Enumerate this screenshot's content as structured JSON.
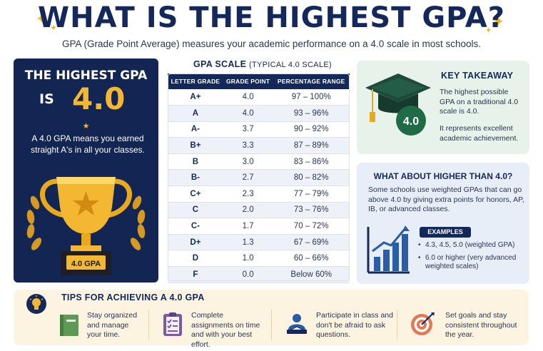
{
  "header": {
    "title": "WHAT IS THE HIGHEST GPA?",
    "subtitle": "GPA (Grade Point Average) measures your academic performance on a 4.0 scale in most schools."
  },
  "highlight": {
    "title": "THE HIGHEST GPA",
    "is_label": "IS",
    "value": "4.0",
    "description": "A 4.0 GPA means you earned straight A's in all your classes.",
    "trophy_label": "4.0 GPA"
  },
  "scale": {
    "title": "GPA SCALE",
    "subtitle": "(TYPICAL 4.0 SCALE)",
    "headers": [
      "LETTER GRADE",
      "GRADE POINT",
      "PERCENTAGE RANGE"
    ],
    "rows": [
      [
        "A+",
        "4.0",
        "97 – 100%"
      ],
      [
        "A",
        "4.0",
        "93 – 96%"
      ],
      [
        "A-",
        "3.7",
        "90 – 92%"
      ],
      [
        "B+",
        "3.3",
        "87 – 89%"
      ],
      [
        "B",
        "3.0",
        "83 – 86%"
      ],
      [
        "B-",
        "2.7",
        "80 – 82%"
      ],
      [
        "C+",
        "2.3",
        "77 – 79%"
      ],
      [
        "C",
        "2.0",
        "73 – 76%"
      ],
      [
        "C-",
        "1.7",
        "70 – 72%"
      ],
      [
        "D+",
        "1.3",
        "67 – 69%"
      ],
      [
        "D",
        "1.0",
        "60 – 66%"
      ],
      [
        "F",
        "0.0",
        "Below 60%"
      ]
    ]
  },
  "takeaway": {
    "title": "KEY TAKEAWAY",
    "badge": "4.0",
    "text1": "The highest possible GPA on a traditional 4.0 scale is 4.0.",
    "text2": "It represents excellent academic achievement."
  },
  "higher": {
    "title": "WHAT ABOUT HIGHER THAN 4.0?",
    "text": "Some schools use weighted GPAs that can go above 4.0 by giving extra points for honors, AP, IB, or advanced classes.",
    "examples_label": "EXAMPLES",
    "examples": [
      "4.3, 4.5, 5.0 (weighted GPA)",
      "6.0 or higher (very advanced weighted scales)"
    ]
  },
  "tips": {
    "title": "TIPS FOR ACHIEVING A 4.0 GPA",
    "items": [
      {
        "icon": "book-icon",
        "text": "Stay organized and manage your time."
      },
      {
        "icon": "clipboard-icon",
        "text": "Complete assignments on time and with your best effort."
      },
      {
        "icon": "student-icon",
        "text": "Participate in class and don't be afraid to ask questions."
      },
      {
        "icon": "target-icon",
        "text": "Set goals and stay consistent throughout the year."
      }
    ]
  },
  "colors": {
    "navy": "#14285a",
    "gold": "#f3b731",
    "green_panel": "#e6f2ea",
    "blue_panel": "#e8eef8",
    "tips_panel": "#fdf3e1"
  }
}
